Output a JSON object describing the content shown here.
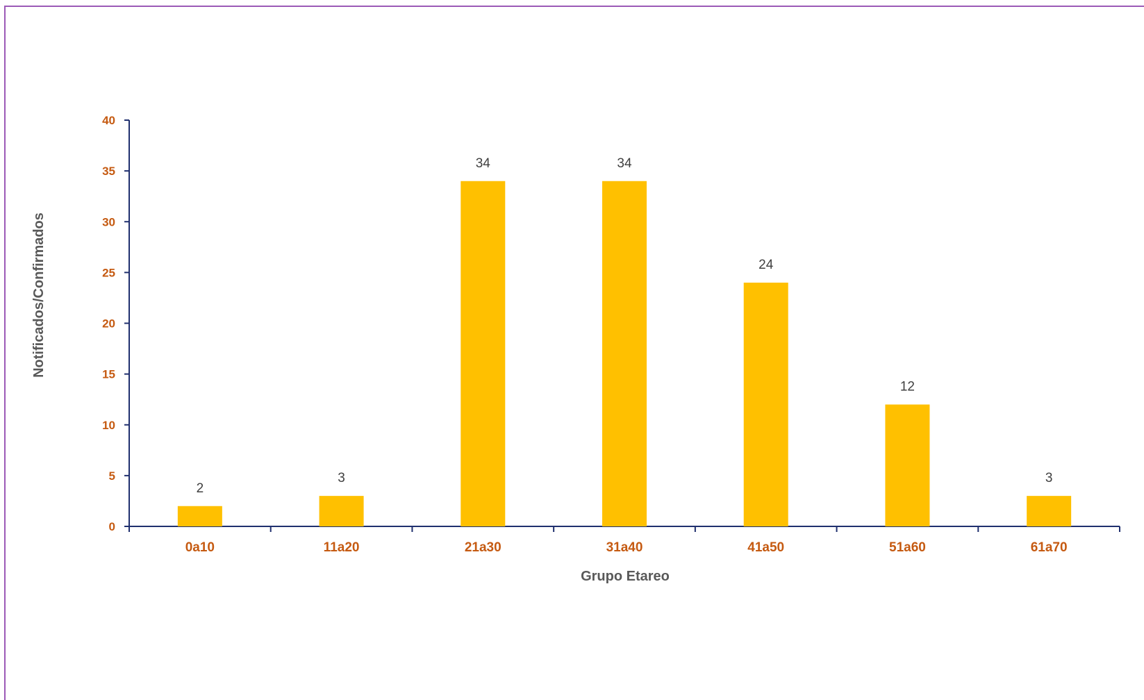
{
  "chart_data": {
    "type": "bar",
    "categories": [
      "0a10",
      "11a20",
      "21a30",
      "31a40",
      "41a50",
      "51a60",
      "61a70"
    ],
    "values": [
      2,
      3,
      34,
      34,
      24,
      12,
      3
    ],
    "xlabel": "Grupo Etareo",
    "ylabel": "Notificados/Confirmados",
    "ylim": [
      0,
      40
    ],
    "yticks": [
      0,
      5,
      10,
      15,
      20,
      25,
      30,
      35,
      40
    ],
    "grid": false,
    "colors": {
      "bar": "#ffc000",
      "axis": "#1f2f6e",
      "tick_text": "#c55a11",
      "axis_title": "#595959",
      "data_label": "#404040"
    }
  }
}
